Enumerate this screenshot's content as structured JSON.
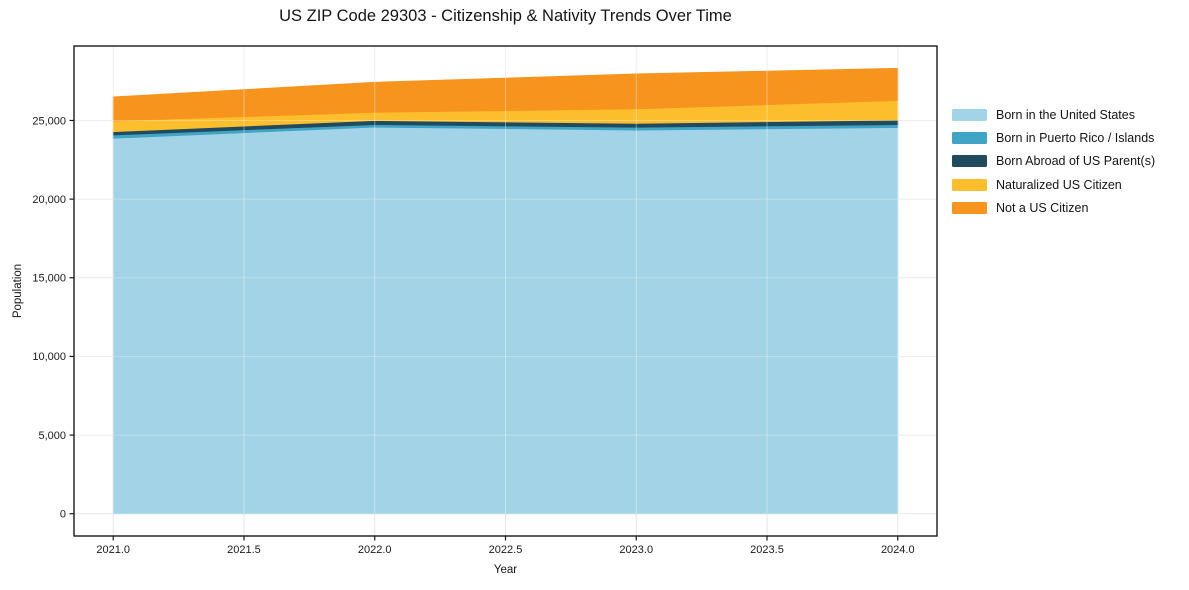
{
  "chart_data": {
    "type": "area",
    "stacked": true,
    "title": "US ZIP Code 29303 - Citizenship & Nativity Trends Over Time",
    "xlabel": "Year",
    "ylabel": "Population",
    "x": [
      2021,
      2022,
      2023,
      2024
    ],
    "series": [
      {
        "name": "Born in the United States",
        "color": "#A3D3E6",
        "values": [
          23870,
          24580,
          24390,
          24550
        ]
      },
      {
        "name": "Born in Puerto Rico / Islands",
        "color": "#40A4C4",
        "values": [
          210,
          160,
          180,
          190
        ]
      },
      {
        "name": "Born Abroad of US Parent(s)",
        "color": "#204B5F",
        "values": [
          210,
          260,
          250,
          290
        ]
      },
      {
        "name": "Naturalized US Citizen",
        "color": "#FDBE2E",
        "values": [
          680,
          520,
          920,
          1240
        ]
      },
      {
        "name": "Not a US Citizen",
        "color": "#F7941E",
        "values": [
          1530,
          1910,
          2220,
          2050
        ]
      }
    ],
    "totals": [
      26500,
      27430,
      27960,
      28320
    ],
    "xlim": [
      2020.85,
      2024.15
    ],
    "ylim": [
      -1416,
      29736
    ],
    "xticks": {
      "values": [
        2021.0,
        2021.5,
        2022.0,
        2022.5,
        2023.0,
        2023.5,
        2024.0
      ],
      "labels": [
        "2021.0",
        "2021.5",
        "2022.0",
        "2022.5",
        "2023.0",
        "2023.5",
        "2024.0"
      ]
    },
    "yticks": {
      "values": [
        0,
        5000,
        10000,
        15000,
        20000,
        25000
      ],
      "labels": [
        "0",
        "5,000",
        "10,000",
        "15,000",
        "20,000",
        "25,000"
      ]
    },
    "grid": true,
    "legend_position": "right",
    "baseline": 0
  }
}
